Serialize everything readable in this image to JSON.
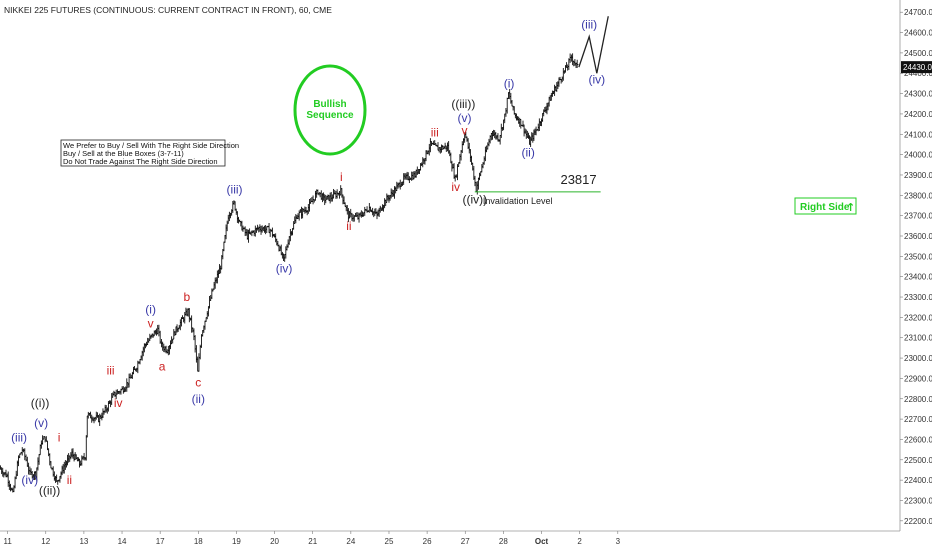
{
  "chart_data": {
    "type": "bar",
    "style": "ohlc",
    "title": "NIKKEI 225 FUTURES (CONTINUOUS: CURRENT CONTRACT IN FRONT), 60, CME",
    "xlabel": "",
    "ylabel": "",
    "ylim": [
      22150,
      24760
    ],
    "xlim": [
      10.8,
      34.4
    ],
    "y_ticks": [
      "22200.0",
      "22300.0",
      "22400.0",
      "22500.0",
      "22600.0",
      "22700.0",
      "22800.0",
      "22900.0",
      "23000.0",
      "23100.0",
      "23200.0",
      "23300.0",
      "23400.0",
      "23500.0",
      "23600.0",
      "23700.0",
      "23800.0",
      "23900.0",
      "24000.0",
      "24100.0",
      "24200.0",
      "24300.0",
      "24400.0",
      "24500.0",
      "24600.0",
      "24700.0"
    ],
    "y_tick_values": [
      22200,
      22300,
      22400,
      22500,
      22600,
      22700,
      22800,
      22900,
      23000,
      23100,
      23200,
      23300,
      23400,
      23500,
      23600,
      23700,
      23800,
      23900,
      24000,
      24100,
      24200,
      24300,
      24400,
      24500,
      24600,
      24700
    ],
    "x_ticks": [
      {
        "label": "11",
        "x": 11
      },
      {
        "label": "12",
        "x": 12
      },
      {
        "label": "13",
        "x": 13
      },
      {
        "label": "14",
        "x": 14
      },
      {
        "label": "17",
        "x": 15
      },
      {
        "label": "18",
        "x": 16
      },
      {
        "label": "19",
        "x": 17
      },
      {
        "label": "20",
        "x": 18
      },
      {
        "label": "21",
        "x": 19
      },
      {
        "label": "24",
        "x": 20
      },
      {
        "label": "25",
        "x": 21
      },
      {
        "label": "26",
        "x": 22
      },
      {
        "label": "27",
        "x": 23
      },
      {
        "label": "28",
        "x": 24
      },
      {
        "label": "Oct",
        "x": 25
      },
      {
        "label": "2",
        "x": 26
      },
      {
        "label": "3",
        "x": 27
      }
    ],
    "current_price": "24430.0",
    "price_path": [
      [
        10.8,
        22460
      ],
      [
        11.0,
        22420
      ],
      [
        11.15,
        22330
      ],
      [
        11.3,
        22510
      ],
      [
        11.4,
        22550
      ],
      [
        11.5,
        22500
      ],
      [
        11.6,
        22430
      ],
      [
        11.75,
        22430
      ],
      [
        11.9,
        22590
      ],
      [
        12.0,
        22610
      ],
      [
        12.15,
        22470
      ],
      [
        12.3,
        22390
      ],
      [
        12.5,
        22470
      ],
      [
        12.7,
        22530
      ],
      [
        12.9,
        22480
      ],
      [
        13.05,
        22520
      ],
      [
        13.1,
        22720
      ],
      [
        13.4,
        22700
      ],
      [
        13.6,
        22750
      ],
      [
        13.8,
        22820
      ],
      [
        14.05,
        22850
      ],
      [
        14.2,
        22890
      ],
      [
        14.4,
        22960
      ],
      [
        14.6,
        23060
      ],
      [
        14.8,
        23110
      ],
      [
        14.95,
        23140
      ],
      [
        15.05,
        23060
      ],
      [
        15.2,
        23040
      ],
      [
        15.4,
        23130
      ],
      [
        15.6,
        23190
      ],
      [
        15.75,
        23230
      ],
      [
        15.9,
        23100
      ],
      [
        16.0,
        22930
      ],
      [
        16.1,
        23120
      ],
      [
        16.4,
        23340
      ],
      [
        16.6,
        23450
      ],
      [
        16.8,
        23700
      ],
      [
        16.95,
        23760
      ],
      [
        17.1,
        23660
      ],
      [
        17.3,
        23600
      ],
      [
        17.6,
        23640
      ],
      [
        17.9,
        23630
      ],
      [
        18.1,
        23560
      ],
      [
        18.25,
        23480
      ],
      [
        18.4,
        23600
      ],
      [
        18.6,
        23700
      ],
      [
        18.9,
        23740
      ],
      [
        19.15,
        23820
      ],
      [
        19.3,
        23780
      ],
      [
        19.5,
        23790
      ],
      [
        19.75,
        23820
      ],
      [
        19.95,
        23700
      ],
      [
        20.2,
        23690
      ],
      [
        20.5,
        23740
      ],
      [
        20.7,
        23700
      ],
      [
        20.9,
        23770
      ],
      [
        21.1,
        23810
      ],
      [
        21.4,
        23880
      ],
      [
        21.7,
        23900
      ],
      [
        21.9,
        23970
      ],
      [
        22.1,
        24050
      ],
      [
        22.3,
        24030
      ],
      [
        22.55,
        24040
      ],
      [
        22.75,
        23880
      ],
      [
        23.0,
        24110
      ],
      [
        23.15,
        23990
      ],
      [
        23.3,
        23830
      ],
      [
        23.45,
        23940
      ],
      [
        23.7,
        24110
      ],
      [
        23.9,
        24080
      ],
      [
        24.05,
        24190
      ],
      [
        24.15,
        24300
      ],
      [
        24.3,
        24200
      ],
      [
        24.5,
        24150
      ],
      [
        24.7,
        24060
      ],
      [
        24.9,
        24130
      ],
      [
        25.1,
        24220
      ],
      [
        25.3,
        24300
      ],
      [
        25.5,
        24370
      ],
      [
        25.7,
        24440
      ],
      [
        25.8,
        24480
      ],
      [
        25.95,
        24430
      ]
    ],
    "projection": [
      [
        25.98,
        24430
      ],
      [
        26.25,
        24580
      ],
      [
        26.45,
        24400
      ],
      [
        26.75,
        24680
      ]
    ],
    "levels": [
      {
        "name": "Invalidation Level",
        "value": 23817,
        "x_start": 23.25,
        "x_end": 26.55,
        "color": "#2bb52b",
        "label": "Invalidation Level",
        "value_label": "23817"
      }
    ],
    "annotations": [
      {
        "text": "(iii)",
        "x": 11.3,
        "y": 22590,
        "color": "#3a3aa8"
      },
      {
        "text": "(iv)",
        "x": 11.58,
        "y": 22380,
        "color": "#3a3aa8"
      },
      {
        "text": "((i))",
        "x": 11.85,
        "y": 22760,
        "color": "#222222"
      },
      {
        "text": "(v)",
        "x": 11.88,
        "y": 22660,
        "color": "#3a3aa8"
      },
      {
        "text": "((ii))",
        "x": 12.1,
        "y": 22330,
        "color": "#222222"
      },
      {
        "text": "i",
        "x": 12.35,
        "y": 22590,
        "color": "#cc2222"
      },
      {
        "text": "ii",
        "x": 12.62,
        "y": 22380,
        "color": "#cc2222"
      },
      {
        "text": "iii",
        "x": 13.7,
        "y": 22920,
        "color": "#cc2222"
      },
      {
        "text": "iv",
        "x": 13.9,
        "y": 22760,
        "color": "#cc2222"
      },
      {
        "text": "(i)",
        "x": 14.75,
        "y": 23220,
        "color": "#3a3aa8"
      },
      {
        "text": "v",
        "x": 14.75,
        "y": 23150,
        "color": "#cc2222"
      },
      {
        "text": "a",
        "x": 15.05,
        "y": 22940,
        "color": "#cc2222"
      },
      {
        "text": "b",
        "x": 15.7,
        "y": 23280,
        "color": "#cc2222"
      },
      {
        "text": "c",
        "x": 16.0,
        "y": 22860,
        "color": "#cc2222"
      },
      {
        "text": "(ii)",
        "x": 16.0,
        "y": 22780,
        "color": "#3a3aa8"
      },
      {
        "text": "(iii)",
        "x": 16.95,
        "y": 23810,
        "color": "#3a3aa8"
      },
      {
        "text": "(iv)",
        "x": 18.25,
        "y": 23420,
        "color": "#3a3aa8"
      },
      {
        "text": "i",
        "x": 19.75,
        "y": 23870,
        "color": "#cc2222"
      },
      {
        "text": "ii",
        "x": 19.95,
        "y": 23630,
        "color": "#cc2222"
      },
      {
        "text": "iii",
        "x": 22.2,
        "y": 24090,
        "color": "#cc2222"
      },
      {
        "text": "iv",
        "x": 22.75,
        "y": 23820,
        "color": "#cc2222"
      },
      {
        "text": "((iii))",
        "x": 22.95,
        "y": 24230,
        "color": "#222222"
      },
      {
        "text": "(v)",
        "x": 22.98,
        "y": 24160,
        "color": "#3a3aa8"
      },
      {
        "text": "v",
        "x": 22.98,
        "y": 24100,
        "color": "#cc2222"
      },
      {
        "text": "((iv))",
        "x": 23.25,
        "y": 23760,
        "color": "#222222"
      },
      {
        "text": "(i)",
        "x": 24.15,
        "y": 24330,
        "color": "#3a3aa8"
      },
      {
        "text": "(ii)",
        "x": 24.65,
        "y": 23990,
        "color": "#3a3aa8"
      },
      {
        "text": "(iii)",
        "x": 26.25,
        "y": 24620,
        "color": "#3a3aa8"
      },
      {
        "text": "(iv)",
        "x": 26.45,
        "y": 24350,
        "color": "#3a3aa8"
      }
    ]
  },
  "notes": {
    "lines": [
      "We Prefer to Buy / Sell With The Right Side Direction",
      "Buy / Sell at the Blue Boxes (3-7-11)",
      "Do Not Trade Against The Right Side Direction"
    ]
  },
  "badge": {
    "line1": "Bullish",
    "line2": "Sequence",
    "color": "#22cc22"
  },
  "right_side": {
    "label": "Right Side",
    "arrow": "↑",
    "color": "#22cc22"
  }
}
